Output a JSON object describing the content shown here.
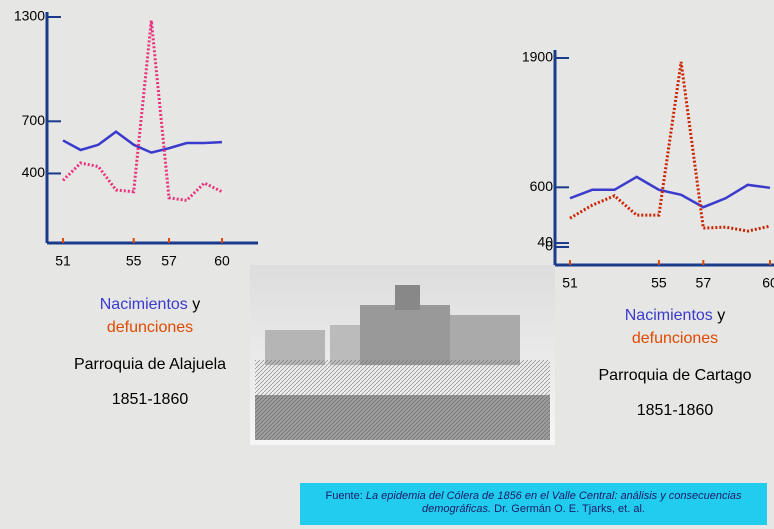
{
  "chart_data": [
    {
      "type": "line",
      "x": [
        51,
        52,
        53,
        54,
        55,
        56,
        57,
        58,
        59,
        60
      ],
      "xlim": [
        51,
        60
      ],
      "xticks": [
        51,
        55,
        57,
        60
      ],
      "ylim": [
        0,
        1300
      ],
      "yticks": [
        400,
        700,
        1300
      ],
      "series": [
        {
          "name": "Nacimientos",
          "color": "#3a3acc",
          "style": "solid",
          "values": [
            590,
            535,
            565,
            640,
            565,
            520,
            545,
            575,
            575,
            580
          ]
        },
        {
          "name": "defunciones",
          "color": "#e8337a",
          "style": "dotted",
          "values": [
            360,
            460,
            440,
            305,
            295,
            1280,
            260,
            245,
            345,
            295
          ]
        }
      ],
      "legend_conjunction": "y",
      "subtitle": "Parroquia de Alajuela",
      "period": "1851-1860"
    },
    {
      "type": "line",
      "x": [
        51,
        52,
        53,
        54,
        55,
        56,
        57,
        58,
        59,
        60
      ],
      "xlim": [
        51,
        60
      ],
      "xticks": [
        51,
        55,
        57,
        60
      ],
      "ylim": [
        0,
        1900
      ],
      "yticks": [
        0,
        40,
        600,
        1900
      ],
      "series": [
        {
          "name": "Nacimientos",
          "color": "#3a3acc",
          "style": "solid",
          "values": [
            490,
            575,
            575,
            705,
            575,
            525,
            400,
            490,
            625,
            595
          ]
        },
        {
          "name": "defunciones",
          "color": "#cc2200",
          "style": "dotted",
          "values": [
            290,
            420,
            515,
            320,
            320,
            1860,
            190,
            200,
            160,
            210
          ]
        }
      ],
      "legend_conjunction": "y",
      "subtitle": "Parroquia de Cartago",
      "period": "1851-1860"
    }
  ],
  "source": {
    "label": "Fuente:",
    "title": "La epidemia del Cólera de 1856 en el Valle Central: análisis y consecuencias demográficas.",
    "authors": "Dr. Germán O. E. Tjarks, et. al."
  }
}
